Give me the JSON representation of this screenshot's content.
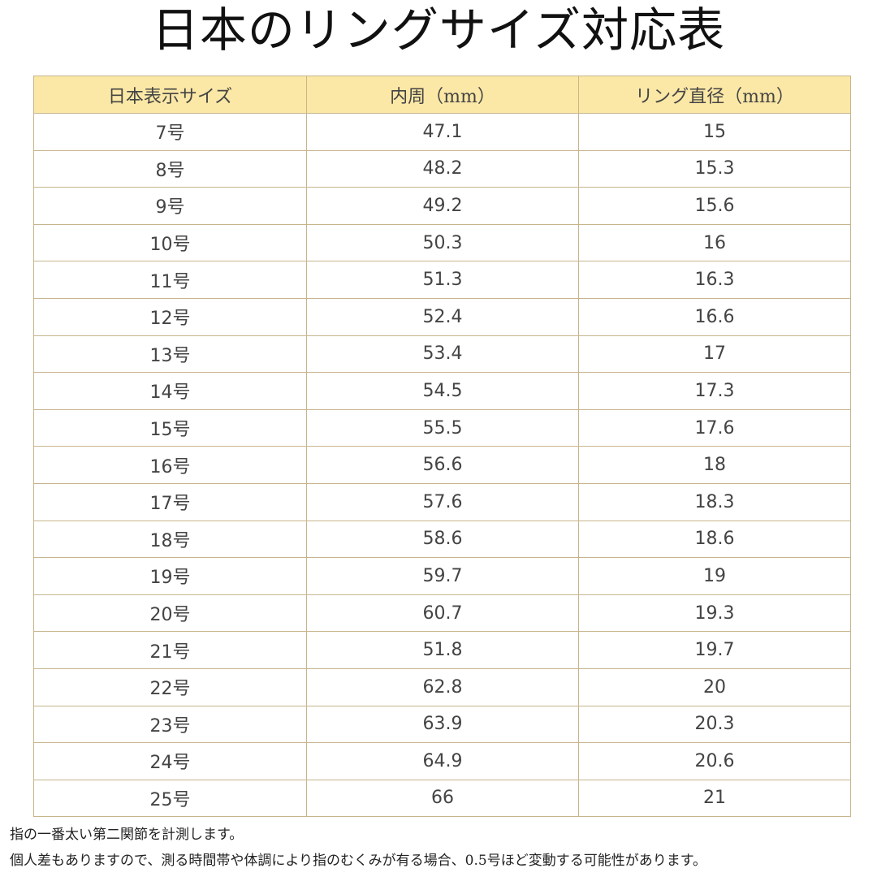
{
  "title": "日本のリングサイズ対応表",
  "table": {
    "headers": [
      "日本表示サイズ",
      "内周（mm）",
      "リング直径（mm）"
    ],
    "rows": [
      [
        "7号",
        "47.1",
        "15"
      ],
      [
        "8号",
        "48.2",
        "15.3"
      ],
      [
        "9号",
        "49.2",
        "15.6"
      ],
      [
        "10号",
        "50.3",
        "16"
      ],
      [
        "11号",
        "51.3",
        "16.3"
      ],
      [
        "12号",
        "52.4",
        "16.6"
      ],
      [
        "13号",
        "53.4",
        "17"
      ],
      [
        "14号",
        "54.5",
        "17.3"
      ],
      [
        "15号",
        "55.5",
        "17.6"
      ],
      [
        "16号",
        "56.6",
        "18"
      ],
      [
        "17号",
        "57.6",
        "18.3"
      ],
      [
        "18号",
        "58.6",
        "18.6"
      ],
      [
        "19号",
        "59.7",
        "19"
      ],
      [
        "20号",
        "60.7",
        "19.3"
      ],
      [
        "21号",
        "51.8",
        "19.7"
      ],
      [
        "22号",
        "62.8",
        "20"
      ],
      [
        "23号",
        "63.9",
        "20.3"
      ],
      [
        "24号",
        "64.9",
        "20.6"
      ],
      [
        "25号",
        "66",
        "21"
      ]
    ]
  },
  "notes": [
    "指の一番太い第二関節を計測します。",
    "個人差もありますので、測る時間帯や体調により指のむくみが有る場合、0.5号ほど変動する可能性があります。"
  ],
  "colors": {
    "header_background": "#fbe8a6",
    "border": "#c7b58c"
  }
}
